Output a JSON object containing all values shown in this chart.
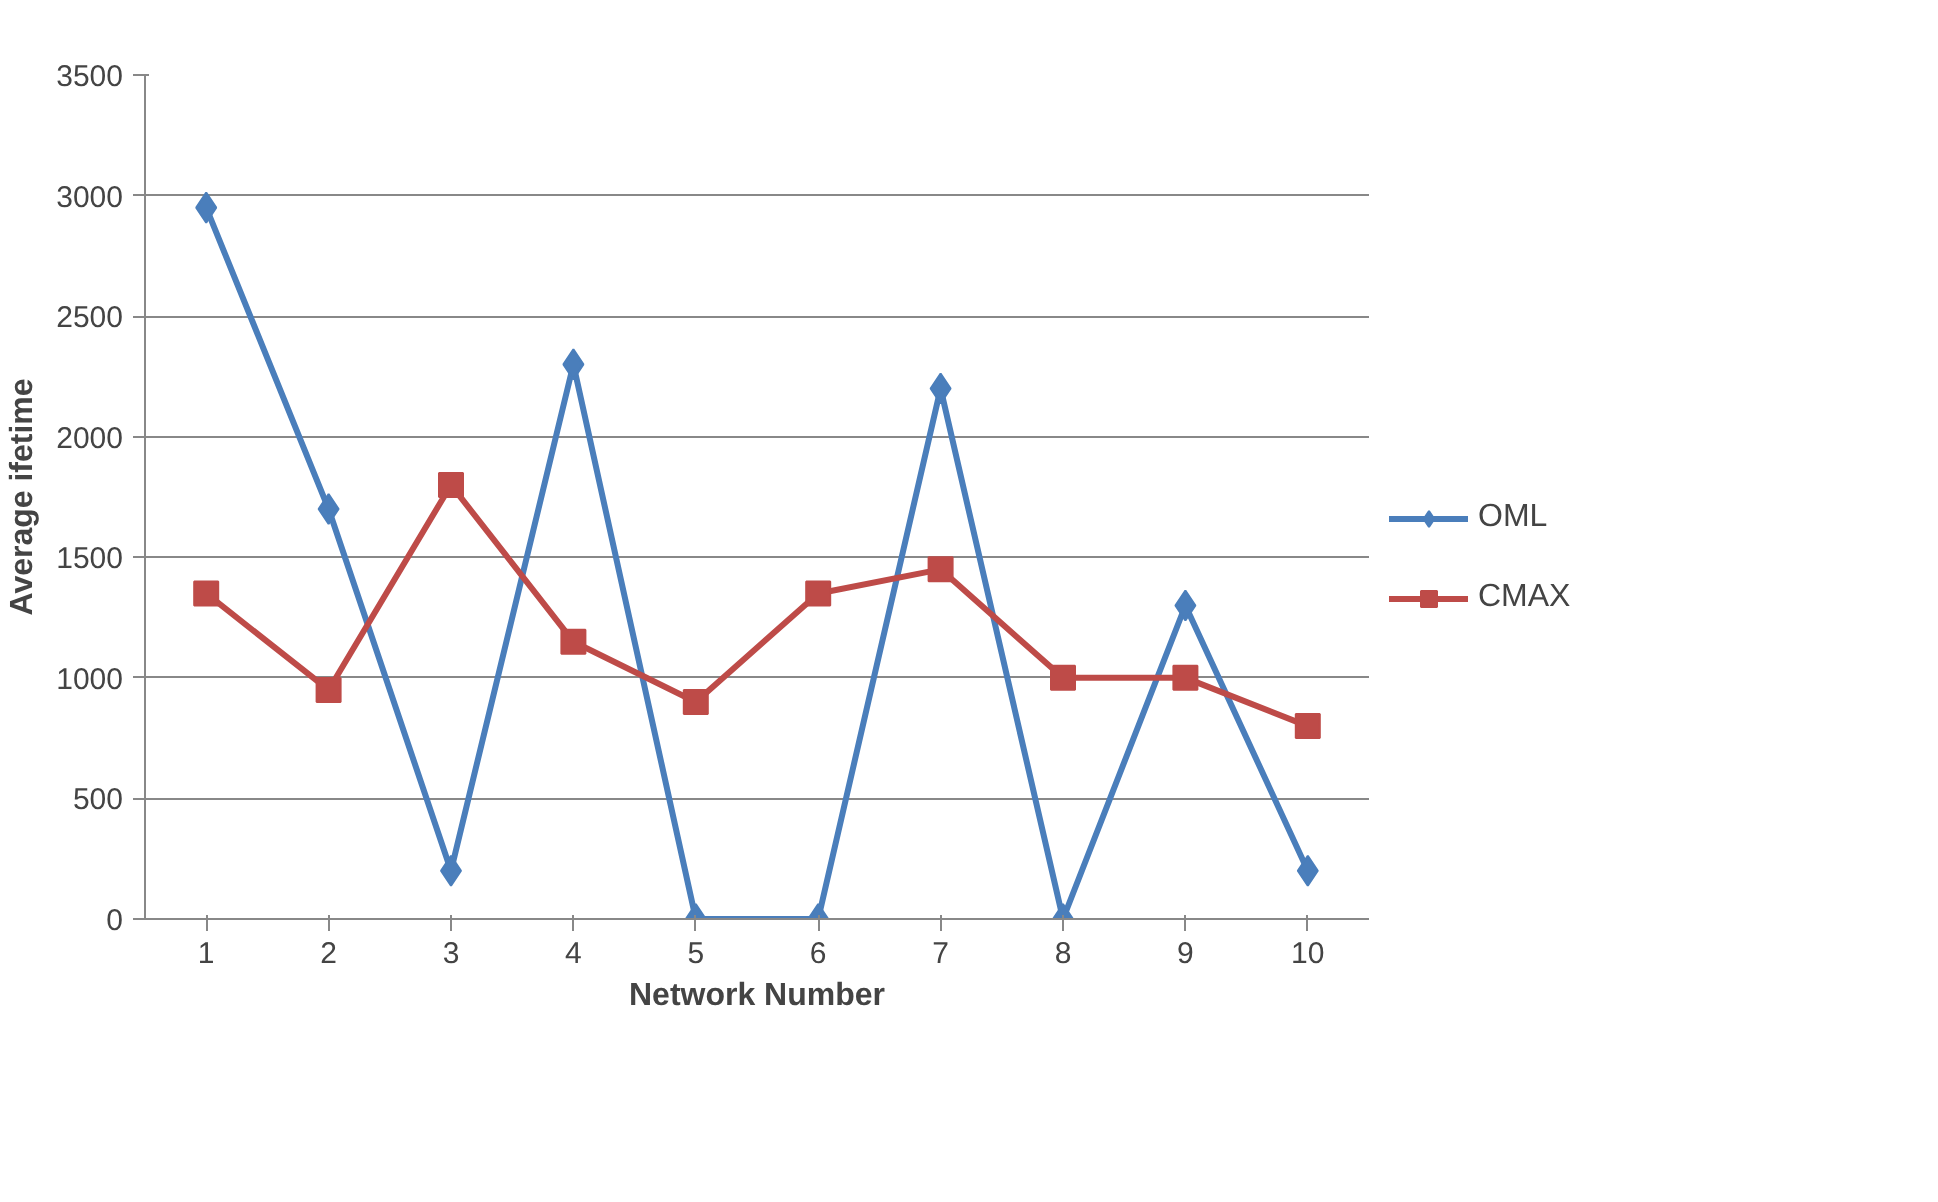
{
  "chart_data": {
    "type": "line",
    "xlabel": "Network Number",
    "ylabel": "Average ifetime",
    "categories": [
      "1",
      "2",
      "3",
      "4",
      "5",
      "6",
      "7",
      "8",
      "9",
      "10"
    ],
    "ylim": [
      0,
      3500
    ],
    "yticks": [
      0,
      500,
      1000,
      1500,
      2000,
      2500,
      3000,
      3500
    ],
    "grid": "y",
    "legend": "right",
    "series": [
      {
        "name": "OML",
        "color": "#4a7ebb",
        "marker": "diamond",
        "values": [
          2950,
          1700,
          200,
          2300,
          0,
          0,
          2200,
          0,
          1300,
          200
        ]
      },
      {
        "name": "CMAX",
        "color": "#be4b48",
        "marker": "square",
        "values": [
          1350,
          950,
          1800,
          1150,
          900,
          1350,
          1450,
          1000,
          1000,
          800
        ]
      }
    ]
  }
}
